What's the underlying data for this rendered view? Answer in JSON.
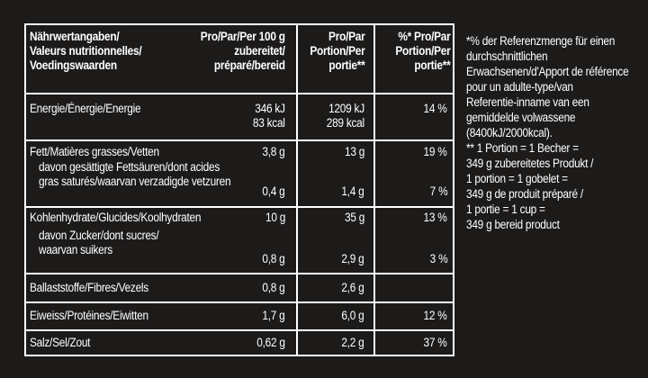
{
  "table": {
    "header": {
      "col0": [
        "Nährwertangaben/",
        "Valeurs nutritionnelles/",
        "Voedingswaarden"
      ],
      "col1": [
        "Pro/Par/Per 100 g",
        "zubereitet/",
        "préparé/bereid"
      ],
      "col2": [
        "Pro/Par",
        "Portion/Per",
        "portie**"
      ],
      "col3": [
        "%* Pro/Par",
        "Portion/Per",
        "portie**"
      ]
    },
    "rows": {
      "energy": {
        "name": [
          "Energie/Énergie/Energie"
        ],
        "per100": [
          "346 kJ",
          "83 kcal"
        ],
        "portion": [
          "1209 kJ",
          "289 kcal"
        ],
        "ri": [
          "14 %"
        ]
      },
      "fat": {
        "name": [
          "Fett/Matières grasses/Vetten"
        ],
        "per100": "3,8 g",
        "portion": "13 g",
        "ri": "19 %"
      },
      "saturates": {
        "name": [
          "davon gesättigte Fettsäuren/dont acides",
          "gras saturés/waarvan verzadigde vetzuren"
        ],
        "per100": "0,4 g",
        "portion": "1,4 g",
        "ri": "7 %"
      },
      "carbs": {
        "name": [
          "Kohlenhydrate/Glucides/Koolhydraten"
        ],
        "per100": "10 g",
        "portion": "35 g",
        "ri": "13 %"
      },
      "sugars": {
        "name": [
          "davon Zucker/dont sucres/",
          "waarvan suikers"
        ],
        "per100": "0,8 g",
        "portion": "2,9 g",
        "ri": "3 %"
      },
      "fibre": {
        "name": [
          "Ballaststoffe/Fibres/Vezels"
        ],
        "per100": "0,8 g",
        "portion": "2,6 g",
        "ri": ""
      },
      "protein": {
        "name": [
          "Eiweiss/Protéines/Eiwitten"
        ],
        "per100": "1,7 g",
        "portion": "6,0 g",
        "ri": "12 %"
      },
      "salt": {
        "name": [
          "Salz/Sel/Zout"
        ],
        "per100": "0,62 g",
        "portion": "2,2 g",
        "ri": "37 %"
      }
    }
  },
  "footnote": [
    "*% der Referenzmenge für einen",
    "durchschnittlichen",
    "Erwachsenen/d'Apport de référence",
    "pour un adulte-type/van",
    "Referentie-inname van een",
    "gemiddelde volwassene",
    "(8400kJ/2000kcal).",
    "** 1 Portion = 1 Becher =",
    "349 g zubereitetes Produkt /",
    "1 portion = 1 gobelet =",
    "349 g de produit préparé /",
    "1 portie = 1 cup =",
    "349 g bereid product"
  ],
  "colors": {
    "background": "#1d1b1a",
    "text": "#ffffff",
    "rules": "#ffffff"
  }
}
